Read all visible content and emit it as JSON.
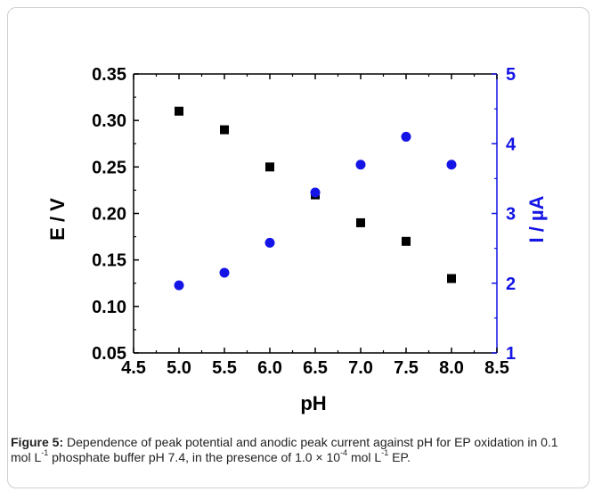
{
  "chart_data": {
    "type": "scatter",
    "xlabel": "pH",
    "ylabel_left": "E / V",
    "ylabel_right": "I / µA",
    "xlim": [
      4.5,
      8.5
    ],
    "ylim_left": [
      0.05,
      0.35
    ],
    "ylim_right": [
      1,
      5
    ],
    "x_ticks": [
      "4.5",
      "5.0",
      "5.5",
      "6.0",
      "6.5",
      "7.0",
      "7.5",
      "8.0",
      "8.5"
    ],
    "y_left_ticks": [
      "0.05",
      "0.10",
      "0.15",
      "0.20",
      "0.25",
      "0.30",
      "0.35"
    ],
    "y_right_ticks": [
      "1",
      "2",
      "3",
      "4",
      "5"
    ],
    "legend": "none",
    "grid": false,
    "right_axis_color": "#1414e6",
    "series": [
      {
        "axis": "left",
        "marker": "square",
        "color": "#000000",
        "x": [
          5.0,
          5.5,
          6.0,
          6.5,
          7.0,
          7.5,
          8.0
        ],
        "y": [
          0.31,
          0.29,
          0.25,
          0.22,
          0.19,
          0.17,
          0.13
        ]
      },
      {
        "axis": "right",
        "marker": "circle",
        "color": "#1414e6",
        "x": [
          5.0,
          5.5,
          6.0,
          6.5,
          7.0,
          7.5,
          8.0
        ],
        "y": [
          1.97,
          2.15,
          2.58,
          3.3,
          3.7,
          4.1,
          3.7
        ]
      }
    ]
  },
  "caption": {
    "label": "Figure 5:",
    "part1": " Dependence of peak potential and anodic peak current against pH for EP oxidation in 0.1 mol L",
    "sup1": "-1",
    "part2": " phosphate buffer pH 7.4, in the presence of 1.0 × 10",
    "sup2": "-4",
    "part3": " mol L",
    "sup3": "-1",
    "part4": " EP."
  }
}
